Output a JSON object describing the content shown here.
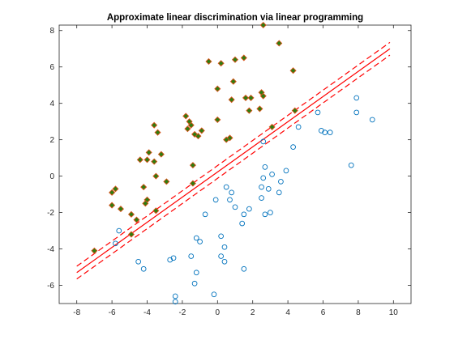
{
  "chart_data": {
    "type": "scatter",
    "title": "Approximate linear discrimination via linear programming",
    "xlabel": "",
    "ylabel": "",
    "xlim": [
      -9,
      11
    ],
    "ylim": [
      -7,
      8.3
    ],
    "xticks": [
      -8,
      -6,
      -4,
      -2,
      0,
      2,
      4,
      6,
      8,
      10
    ],
    "yticks": [
      -6,
      -4,
      -2,
      0,
      2,
      4,
      6,
      8
    ],
    "grid": false,
    "legend": "none",
    "series": [
      {
        "marker": "filled-diamond",
        "color": "#2e7d10",
        "edge_color": "#d95319",
        "points": [
          [
            2.6,
            8.3
          ],
          [
            3.5,
            7.3
          ],
          [
            1.0,
            6.4
          ],
          [
            1.5,
            6.5
          ],
          [
            -0.5,
            6.3
          ],
          [
            0.2,
            6.2
          ],
          [
            4.3,
            5.8
          ],
          [
            0.9,
            5.2
          ],
          [
            0.0,
            4.8
          ],
          [
            2.5,
            4.6
          ],
          [
            1.9,
            4.3
          ],
          [
            1.6,
            4.3
          ],
          [
            2.6,
            4.4
          ],
          [
            0.8,
            4.2
          ],
          [
            2.4,
            3.7
          ],
          [
            1.8,
            3.6
          ],
          [
            4.4,
            3.6
          ],
          [
            -1.8,
            3.3
          ],
          [
            -1.6,
            3.0
          ],
          [
            -1.5,
            2.8
          ],
          [
            -0.9,
            2.5
          ],
          [
            -1.7,
            2.6
          ],
          [
            -1.1,
            2.2
          ],
          [
            -1.3,
            2.3
          ],
          [
            -0.0,
            3.1
          ],
          [
            0.7,
            2.1
          ],
          [
            0.5,
            2.0
          ],
          [
            3.1,
            2.7
          ],
          [
            -3.6,
            2.8
          ],
          [
            -3.4,
            2.4
          ],
          [
            -3.9,
            1.3
          ],
          [
            -3.2,
            1.2
          ],
          [
            -4.0,
            0.9
          ],
          [
            -4.4,
            0.9
          ],
          [
            -3.6,
            0.8
          ],
          [
            -1.4,
            0.6
          ],
          [
            -3.5,
            0.0
          ],
          [
            -2.9,
            -0.3
          ],
          [
            -1.4,
            -0.4
          ],
          [
            -6.0,
            -0.9
          ],
          [
            -5.8,
            -0.7
          ],
          [
            -4.2,
            -0.6
          ],
          [
            -4.0,
            -1.3
          ],
          [
            -4.1,
            -1.5
          ],
          [
            -6.0,
            -1.6
          ],
          [
            -5.5,
            -1.8
          ],
          [
            -3.5,
            -1.9
          ],
          [
            -4.9,
            -2.1
          ],
          [
            -4.6,
            -2.4
          ],
          [
            -4.9,
            -3.2
          ],
          [
            -7.0,
            -4.1
          ]
        ]
      },
      {
        "marker": "open-circle",
        "color": "#0072bd",
        "points": [
          [
            7.9,
            4.3
          ],
          [
            5.7,
            3.5
          ],
          [
            7.9,
            3.5
          ],
          [
            8.8,
            3.1
          ],
          [
            4.6,
            2.7
          ],
          [
            5.9,
            2.5
          ],
          [
            6.1,
            2.4
          ],
          [
            6.4,
            2.4
          ],
          [
            2.6,
            1.9
          ],
          [
            4.3,
            1.6
          ],
          [
            7.6,
            0.6
          ],
          [
            2.7,
            0.5
          ],
          [
            3.1,
            0.1
          ],
          [
            3.9,
            0.3
          ],
          [
            2.6,
            -0.1
          ],
          [
            3.6,
            -0.3
          ],
          [
            2.5,
            -0.6
          ],
          [
            0.5,
            -0.6
          ],
          [
            2.9,
            -0.7
          ],
          [
            0.8,
            -0.9
          ],
          [
            3.5,
            -0.9
          ],
          [
            2.5,
            -1.2
          ],
          [
            0.7,
            -1.3
          ],
          [
            -0.1,
            -1.3
          ],
          [
            1.0,
            -1.7
          ],
          [
            1.8,
            -1.8
          ],
          [
            -0.7,
            -2.1
          ],
          [
            1.5,
            -2.1
          ],
          [
            2.7,
            -2.1
          ],
          [
            3.0,
            -2.0
          ],
          [
            1.4,
            -2.6
          ],
          [
            -5.6,
            -3.0
          ],
          [
            -1.2,
            -3.4
          ],
          [
            -1.0,
            -3.6
          ],
          [
            0.2,
            -3.3
          ],
          [
            -5.8,
            -3.7
          ],
          [
            0.4,
            -3.9
          ],
          [
            0.2,
            -4.4
          ],
          [
            -1.5,
            -4.4
          ],
          [
            -2.5,
            -4.5
          ],
          [
            -2.7,
            -4.6
          ],
          [
            0.4,
            -4.7
          ],
          [
            -4.5,
            -4.7
          ],
          [
            -4.2,
            -5.1
          ],
          [
            1.5,
            -5.1
          ],
          [
            -1.2,
            -5.3
          ],
          [
            -1.3,
            -5.9
          ],
          [
            -0.2,
            -6.5
          ],
          [
            -2.4,
            -6.6
          ],
          [
            -2.4,
            -6.9
          ]
        ]
      }
    ],
    "lines": [
      {
        "style": "solid",
        "color": "#ff0000",
        "points": [
          [
            -8,
            -5.3
          ],
          [
            9.8,
            7.0
          ]
        ]
      },
      {
        "style": "dashed",
        "color": "#ff0000",
        "points": [
          [
            -8,
            -4.95
          ],
          [
            9.8,
            7.35
          ]
        ]
      },
      {
        "style": "dashed",
        "color": "#ff0000",
        "points": [
          [
            -8,
            -5.65
          ],
          [
            9.8,
            6.65
          ]
        ]
      }
    ]
  }
}
